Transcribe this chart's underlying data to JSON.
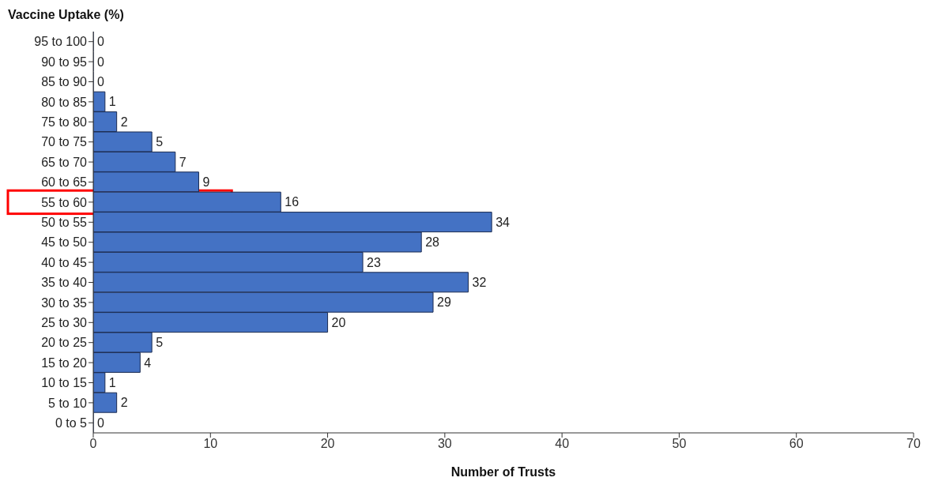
{
  "chart_data": {
    "type": "bar",
    "orientation": "horizontal",
    "ylabel": "Vaccine Uptake (%)",
    "xlabel": "Number of Trusts",
    "categories": [
      "95 to 100",
      "90 to 95",
      "85 to 90",
      "80 to 85",
      "75 to 80",
      "70 to 75",
      "65 to 70",
      "60 to 65",
      "55 to 60",
      "50 to 55",
      "45 to 50",
      "40 to 45",
      "35 to 40",
      "30 to 35",
      "25 to 30",
      "20 to 25",
      "15 to 20",
      "10 to 15",
      "5 to 10",
      "0 to 5"
    ],
    "values": [
      0,
      0,
      0,
      1,
      2,
      5,
      7,
      9,
      16,
      34,
      28,
      23,
      32,
      29,
      20,
      5,
      4,
      1,
      2,
      0
    ],
    "color": "#4472c4",
    "xlim": [
      0,
      70
    ],
    "xticks": [
      0,
      10,
      20,
      30,
      40,
      50,
      60,
      70
    ],
    "grid": false,
    "data_labels": true,
    "legend": false
  }
}
